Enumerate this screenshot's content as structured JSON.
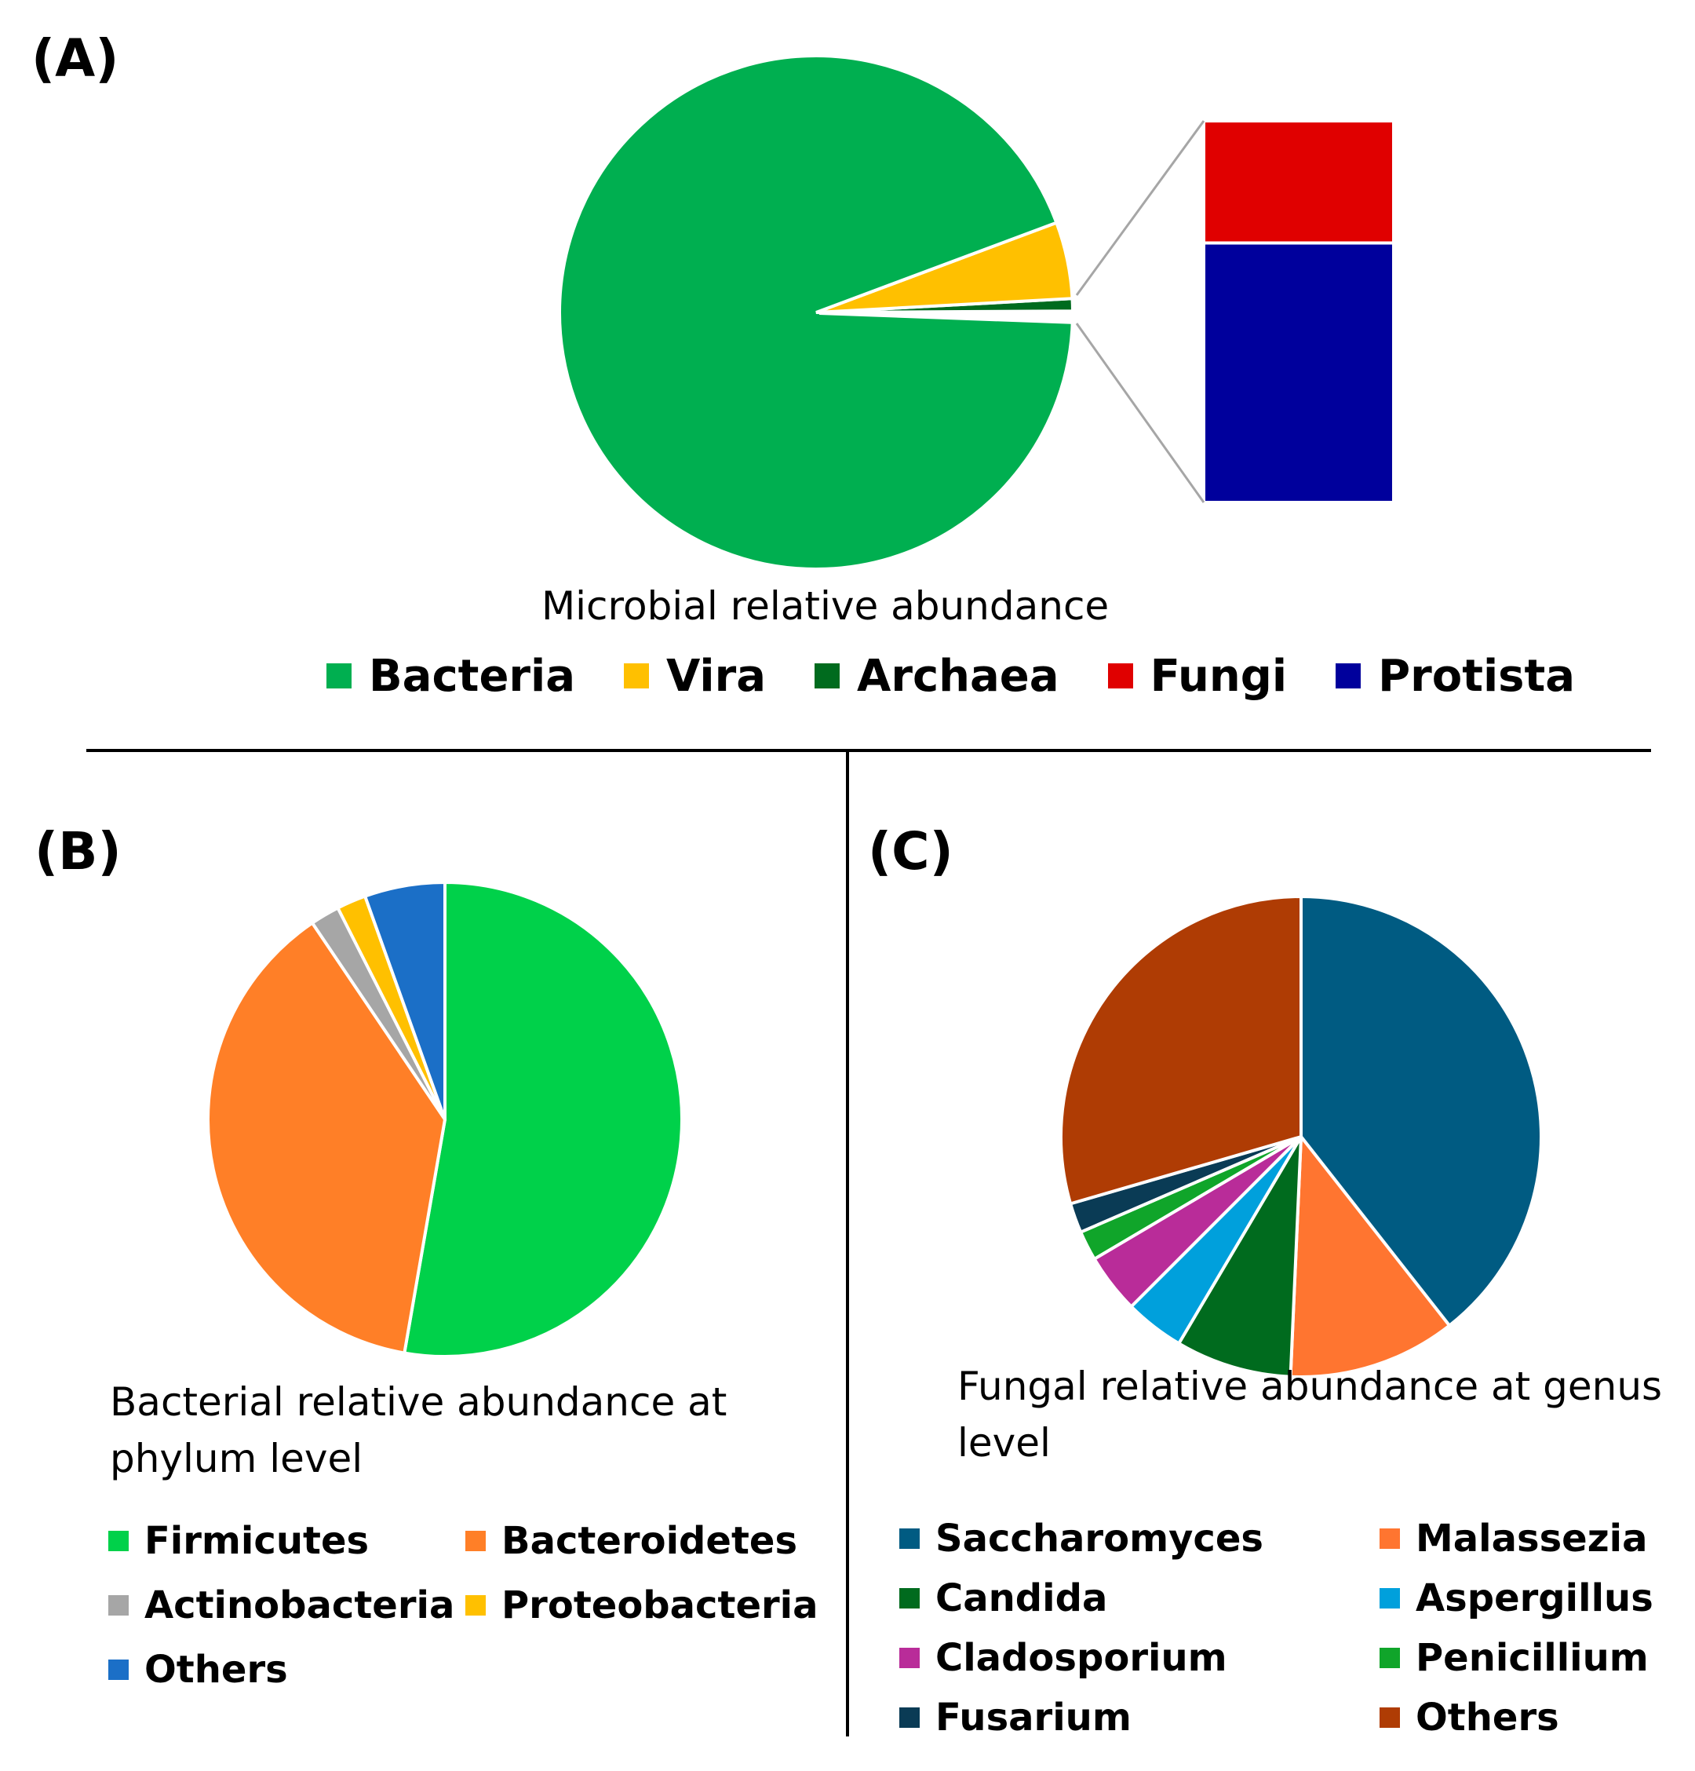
{
  "panels": {
    "a": {
      "label": "(A)"
    },
    "b": {
      "label": "(B)"
    },
    "c": {
      "label": "(C)"
    }
  },
  "chart_data": [
    {
      "id": "A",
      "type": "pie",
      "title": "Microbial relative abundance",
      "categories": [
        "Bacteria",
        "Vira",
        "Archaea",
        "Fungi",
        "Protista"
      ],
      "values": [
        93.87,
        4.82,
        0.78,
        0.16,
        0.34
      ],
      "colors": [
        "#00AF50",
        "#FFC000",
        "#006B1E",
        "#E00000",
        "#00009C"
      ],
      "sub_chart": {
        "type": "stacked-bar",
        "categories": [
          "Fungi",
          "Protista"
        ],
        "values": [
          0.16,
          0.34
        ]
      },
      "legend_position": "bottom"
    },
    {
      "id": "B",
      "type": "pie",
      "title": "Bacterial  relative abundance at phylum level",
      "title_lines": [
        "Bacterial  relative abundance at",
        "phylum level"
      ],
      "categories": [
        "Firmicutes",
        "Bacteroidetes",
        "Actinobacteria",
        "Proteobacteria",
        "Others"
      ],
      "values": [
        53,
        38,
        2,
        2,
        5.5
      ],
      "colors": [
        "#00D14A",
        "#FF7F27",
        "#A6A6A6",
        "#FFC000",
        "#1B6FC7"
      ],
      "legend_position": "bottom"
    },
    {
      "id": "C",
      "type": "pie",
      "title": "Fungal relative abundance at genus level",
      "title_lines": [
        "Fungal relative abundance at genus",
        "level"
      ],
      "categories": [
        "Saccharomyces",
        "Malassezia",
        "Candida",
        "Aspergillus",
        "Cladosporium",
        "Penicillium",
        "Fusarium",
        "Others"
      ],
      "values": [
        39.4,
        11.3,
        7.8,
        4,
        4,
        2,
        2,
        29.5
      ],
      "colors": [
        "#005B82",
        "#FF7530",
        "#006B1E",
        "#00A0DC",
        "#B92C99",
        "#10A52A",
        "#0A3B55",
        "#AF3C04"
      ],
      "legend_position": "bottom"
    }
  ]
}
